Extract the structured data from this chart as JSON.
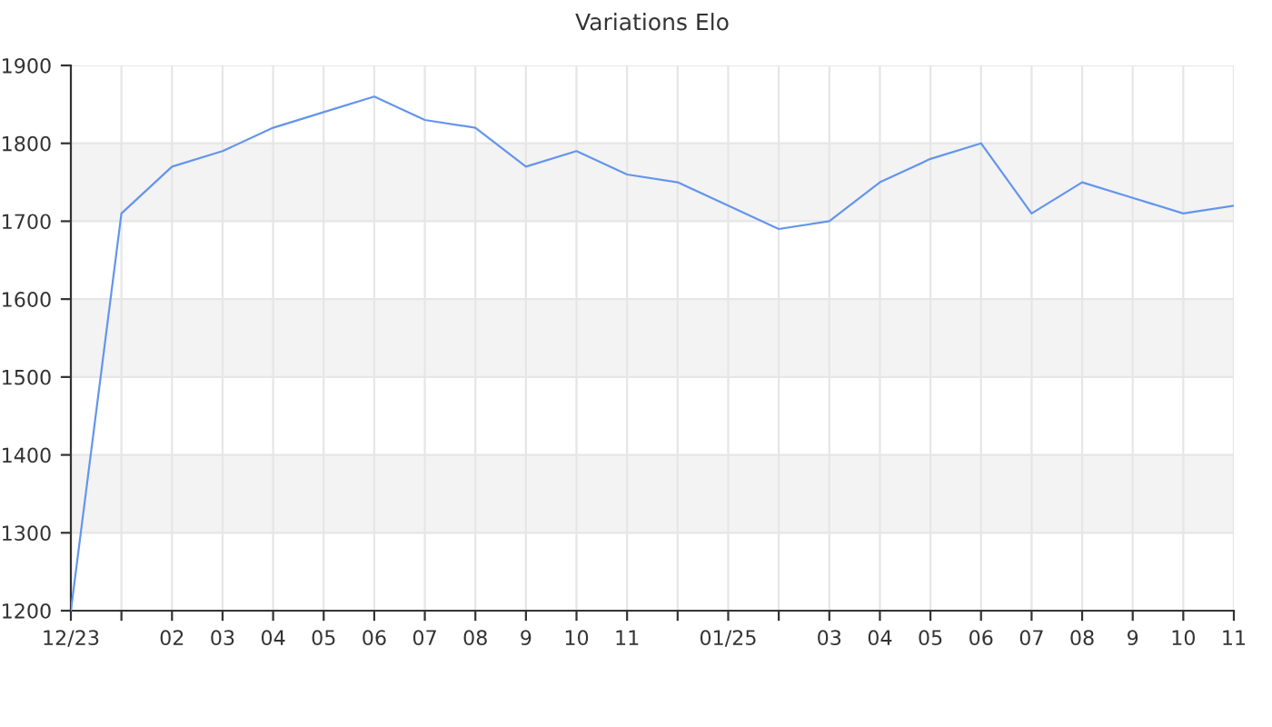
{
  "chart_data": {
    "type": "line",
    "title": "Variations Elo",
    "categories": [
      "12/23",
      null,
      "02",
      "03",
      "04",
      "05",
      "06",
      "07",
      "08",
      "9",
      "10",
      "11",
      null,
      "01/25",
      null,
      "03",
      "04",
      "05",
      "06",
      "07",
      "08",
      "9",
      "10",
      "11"
    ],
    "series": [
      {
        "color": "#6495ed",
        "values": [
          1200,
          1710,
          1770,
          1790,
          1820,
          1840,
          1860,
          1830,
          1820,
          1770,
          1790,
          1760,
          1750,
          1720,
          1690,
          1700,
          1750,
          1780,
          1800,
          1710,
          1750,
          1730,
          1710,
          1720
        ]
      }
    ],
    "ylim": [
      1200,
      1900
    ],
    "yticks": [
      1200,
      1300,
      1400,
      1500,
      1600,
      1700,
      1800,
      1900
    ],
    "bands": [
      {
        "axis": "y",
        "from": 1300,
        "to": 1400,
        "color": "#f3f3f3"
      },
      {
        "axis": "y",
        "from": 1500,
        "to": 1600,
        "color": "#f3f3f3"
      },
      {
        "axis": "y",
        "from": 1700,
        "to": 1800,
        "color": "#f3f3f3"
      }
    ],
    "grid": true,
    "marker": "none",
    "line_style": "solid",
    "legend": false
  }
}
